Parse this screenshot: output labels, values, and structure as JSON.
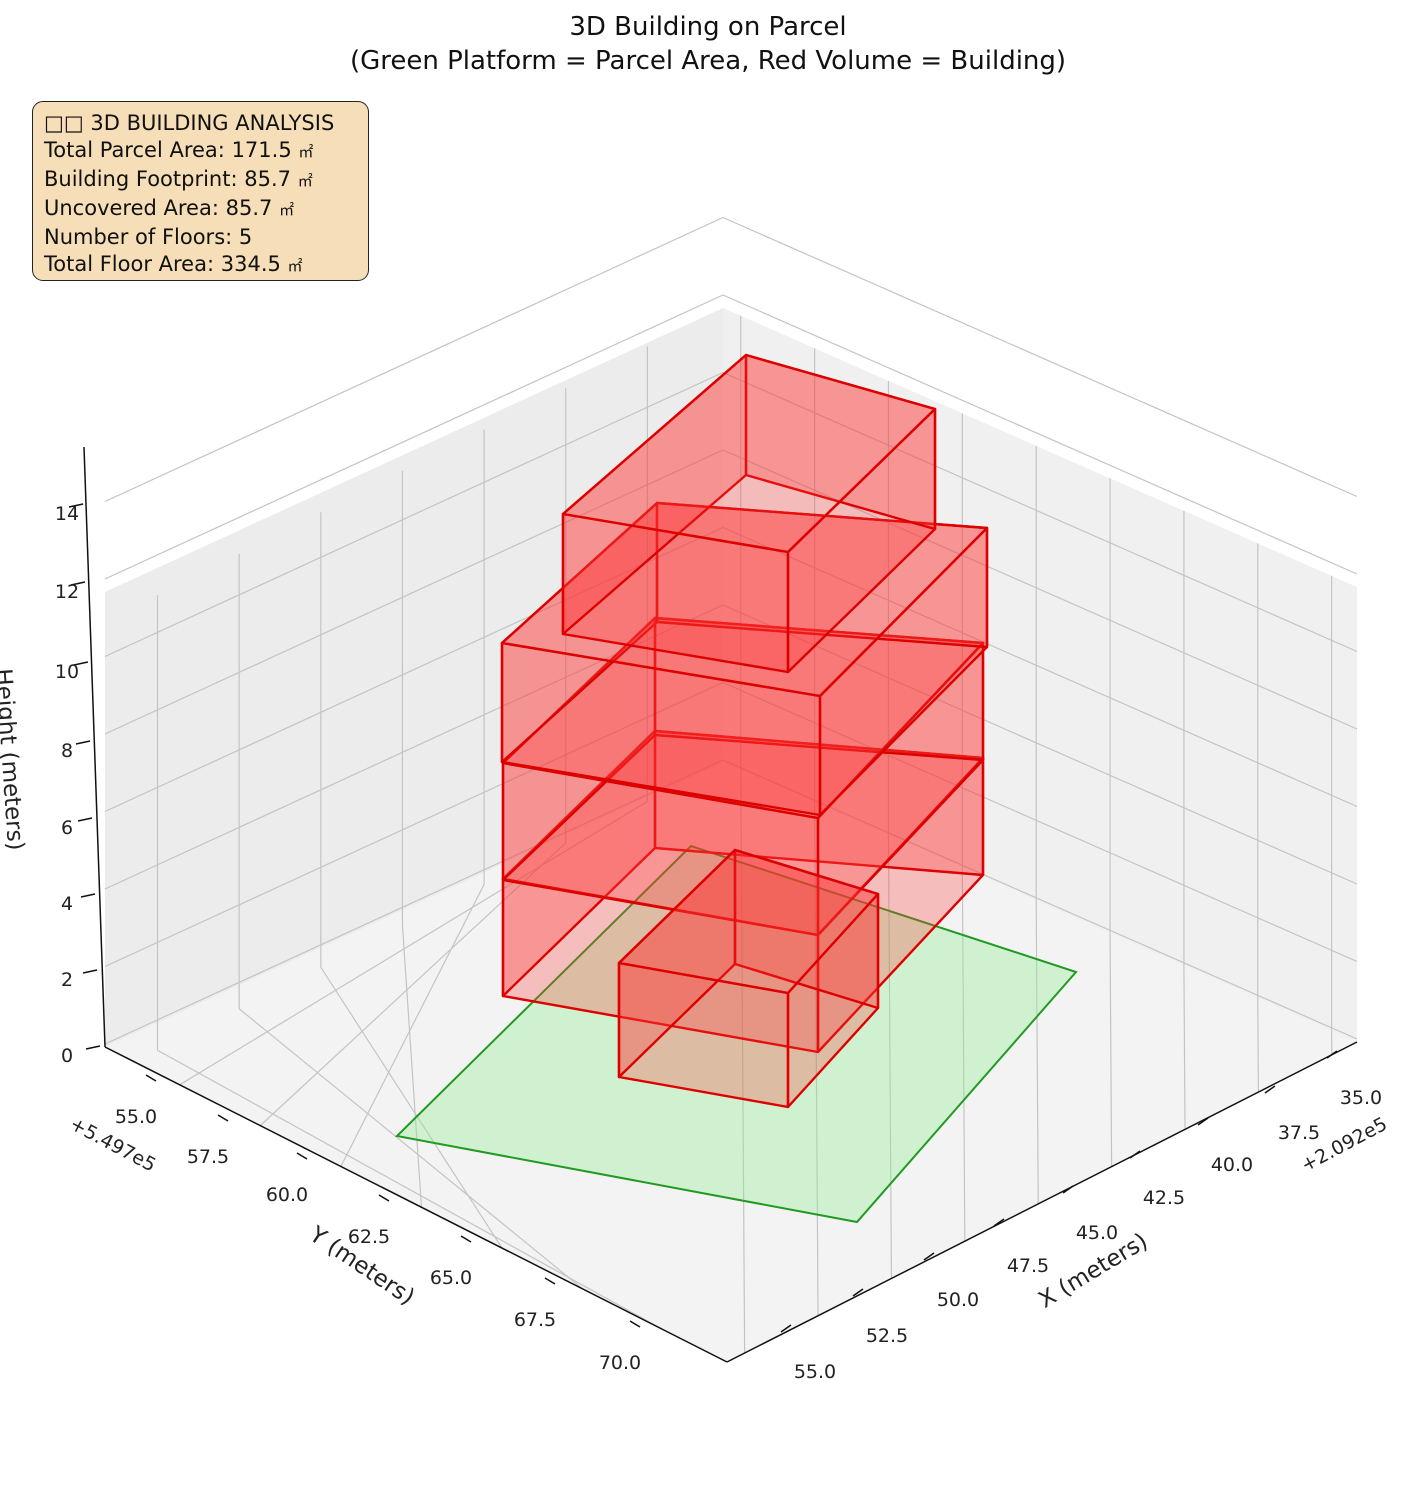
{
  "chart_data": {
    "type": "3d-volume",
    "title_line1": "3D Building on Parcel",
    "title_line2": "(Green Platform = Parcel Area, Red Volume = Building)",
    "x_axis": {
      "label": "X (meters)",
      "offset_label": "+2.092e5",
      "ticks": [
        "35.0",
        "37.5",
        "40.0",
        "42.5",
        "45.0",
        "47.5",
        "50.0",
        "52.5",
        "55.0"
      ]
    },
    "y_axis": {
      "label": "Y (meters)",
      "offset_label": "+5.497e5",
      "ticks": [
        "55.0",
        "57.5",
        "60.0",
        "62.5",
        "65.0",
        "67.5",
        "70.0"
      ]
    },
    "z_axis": {
      "label": "Height (meters)",
      "ticks": [
        "0",
        "2",
        "4",
        "6",
        "8",
        "10",
        "12",
        "14"
      ]
    },
    "grid": true,
    "parcel_color": "#90ee90",
    "building_color": "#ff0000",
    "info_box": {
      "heading": "□□ 3D BUILDING ANALYSIS",
      "lines": [
        {
          "label": "Total Parcel Area",
          "value": "171.5",
          "unit": "㎡"
        },
        {
          "label": "Building Footprint",
          "value": "85.7",
          "unit": "㎡"
        },
        {
          "label": "Uncovered Area",
          "value": "85.7",
          "unit": "㎡"
        },
        {
          "label": "Number of Floors",
          "value": "5",
          "unit": ""
        },
        {
          "label": "Total Floor Area",
          "value": "334.5",
          "unit": "㎡"
        }
      ]
    }
  }
}
